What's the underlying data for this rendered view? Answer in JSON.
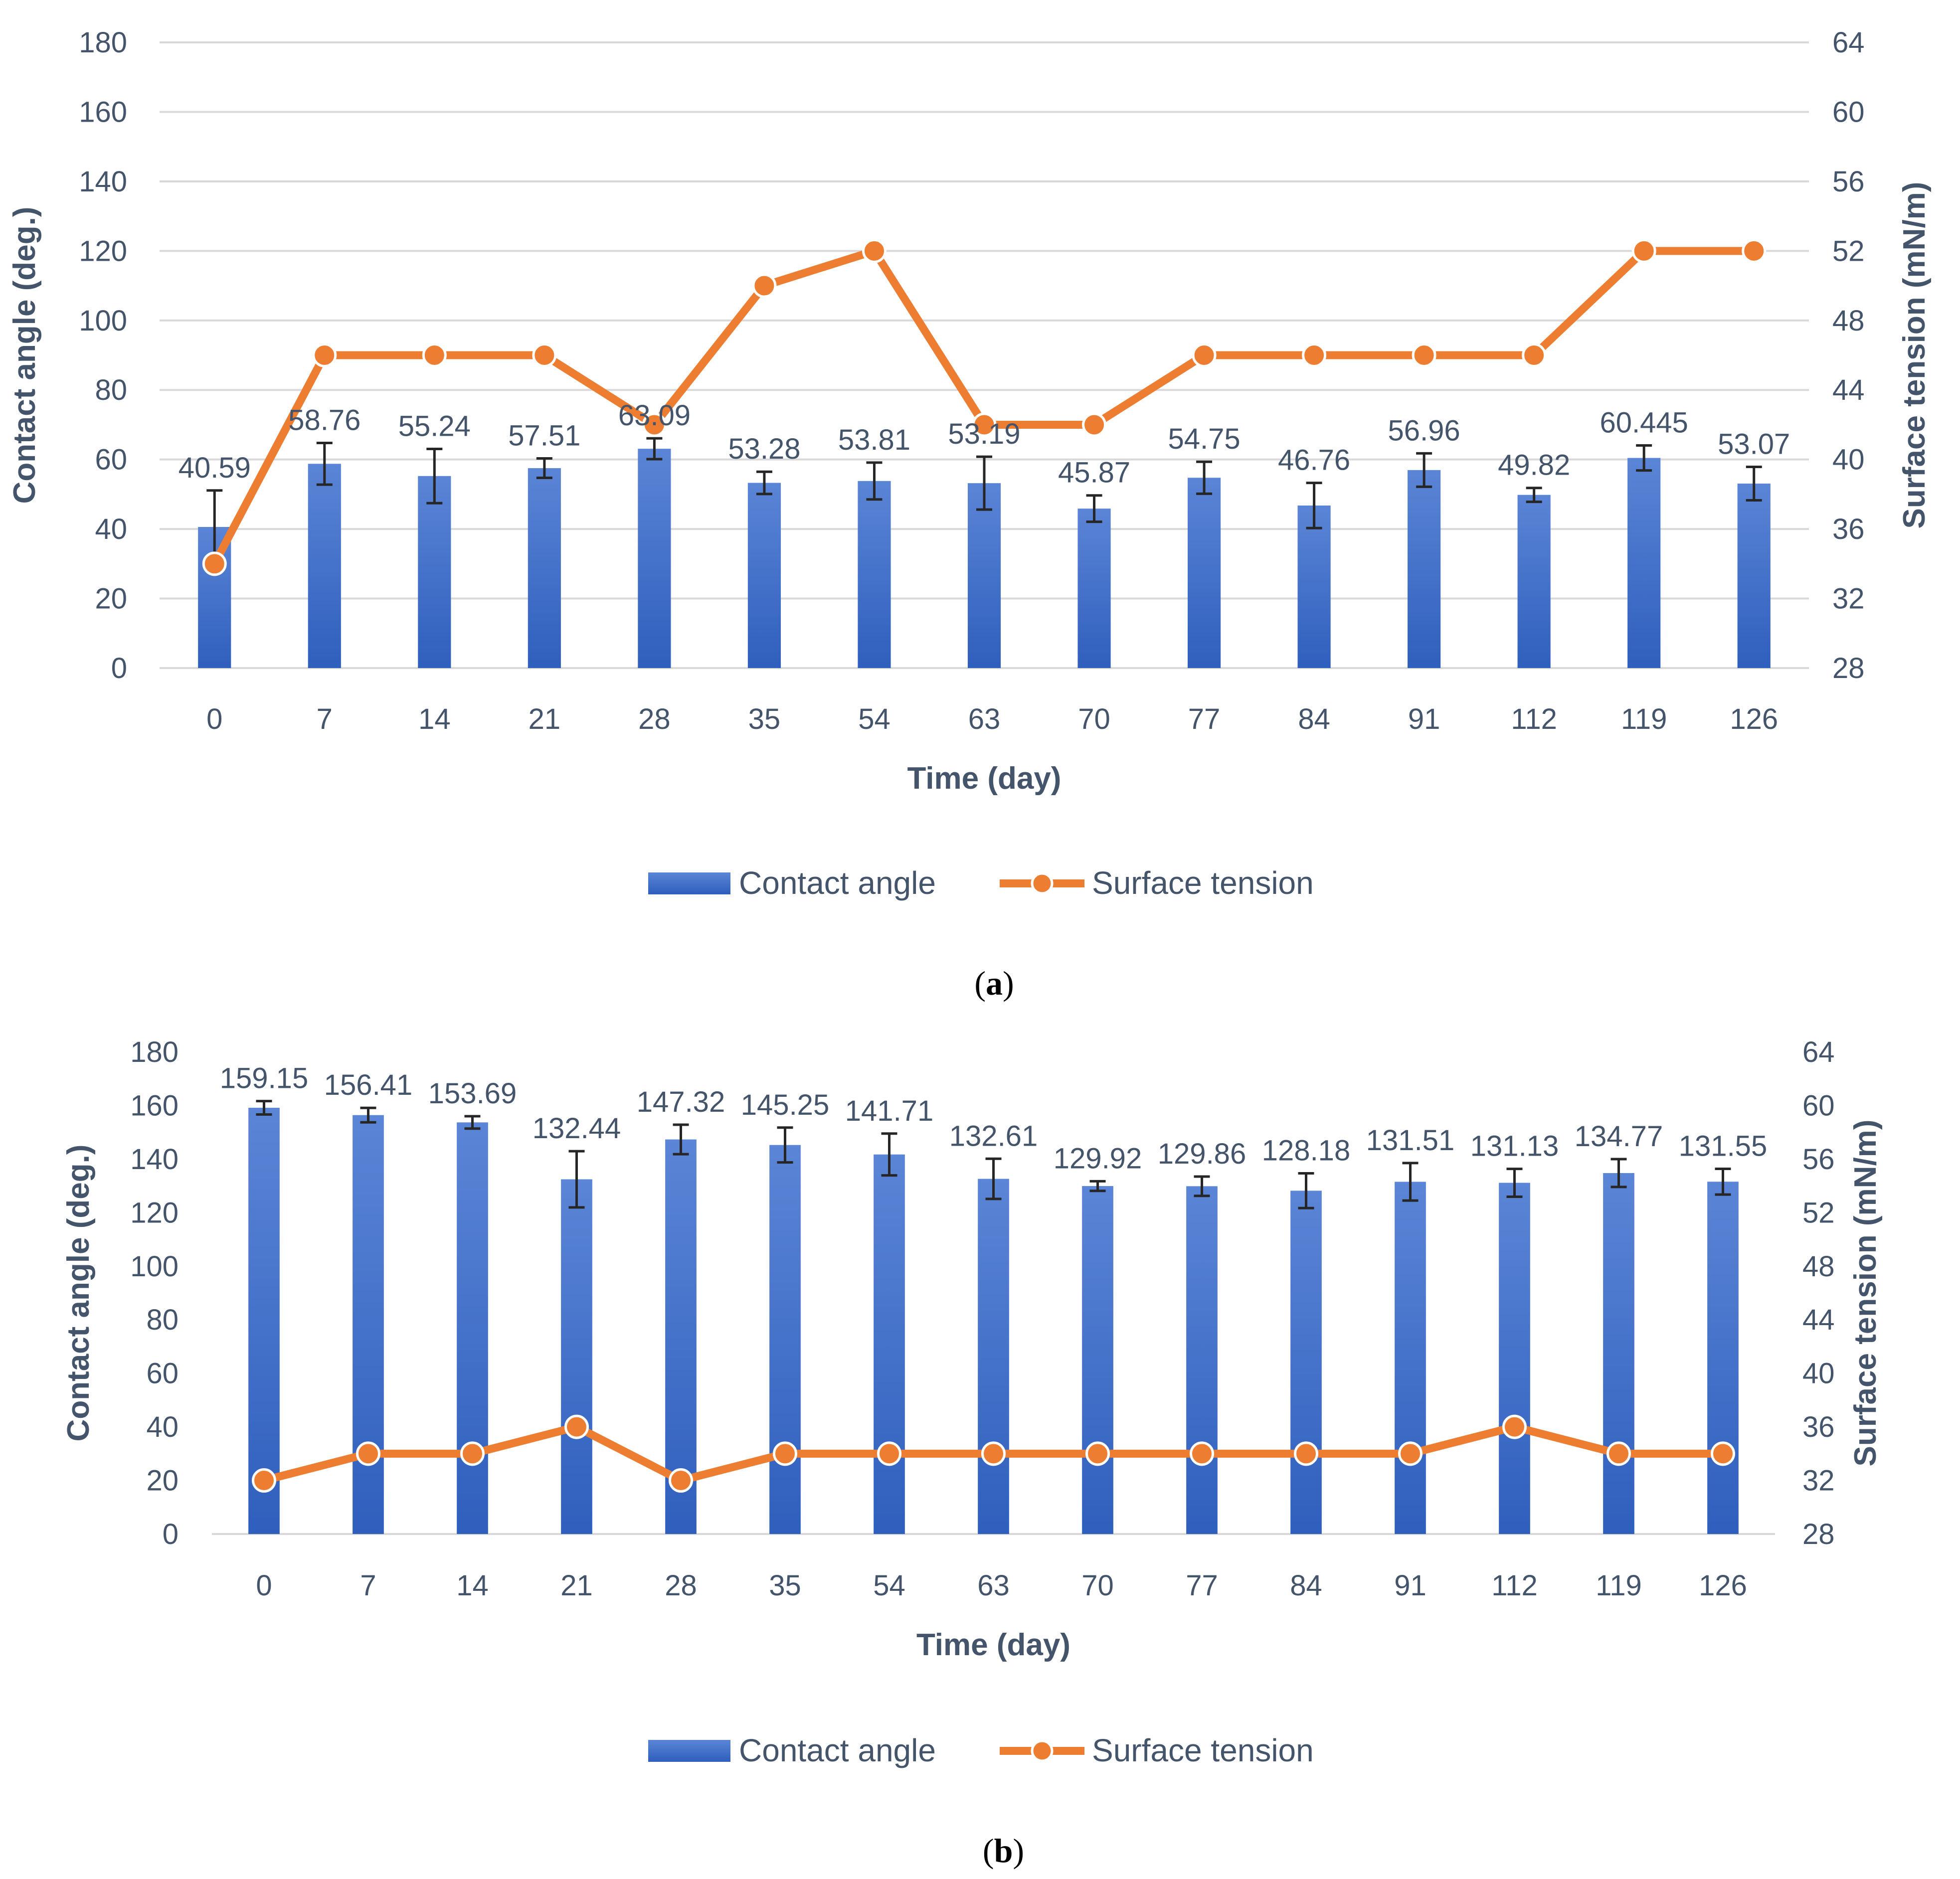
{
  "colors": {
    "bar_top": "#5b85d6",
    "bar_bottom": "#2f5fbd",
    "line": "#ed7d31",
    "grid": "#d9d9d9",
    "text": "#44546a",
    "errorbar": "#262626"
  },
  "chart_data": [
    {
      "type": "bar+line",
      "panel_label": "a",
      "xlabel": "Time (day)",
      "ylabel_left": "Contact angle (deg.)",
      "ylabel_right": "Surface tension (mN/m)",
      "ylim_left": [
        0,
        180
      ],
      "ylim_right": [
        28,
        64
      ],
      "yticks_left": [
        "0",
        "20",
        "40",
        "60",
        "80",
        "100",
        "120",
        "140",
        "160",
        "180"
      ],
      "yticks_right": [
        "28",
        "32",
        "36",
        "40",
        "44",
        "48",
        "52",
        "56",
        "60",
        "64"
      ],
      "grid": true,
      "legend": [
        "Contact angle",
        "Surface tension"
      ],
      "legend_position": "bottom",
      "categories": [
        "0",
        "7",
        "14",
        "21",
        "28",
        "35",
        "54",
        "63",
        "70",
        "77",
        "84",
        "91",
        "112",
        "119",
        "126"
      ],
      "series": [
        {
          "name": "Contact angle",
          "axis": "left",
          "kind": "bar",
          "values": [
            40.59,
            58.76,
            55.24,
            57.51,
            63.09,
            53.28,
            53.81,
            53.19,
            45.87,
            54.75,
            46.76,
            56.96,
            49.82,
            60.445,
            53.07
          ],
          "labels": [
            "40.59",
            "58.76",
            "55.24",
            "57.51",
            "63.09",
            "53.28",
            "53.81",
            "53.19",
            "45.87",
            "54.75",
            "46.76",
            "56.96",
            "49.82",
            "60.445",
            "53.07"
          ],
          "errors": [
            10.5,
            6.0,
            7.8,
            2.8,
            3.0,
            3.2,
            5.3,
            7.6,
            3.8,
            4.6,
            6.5,
            4.8,
            2.0,
            3.6,
            4.8
          ]
        },
        {
          "name": "Surface tension",
          "axis": "right",
          "kind": "line",
          "values": [
            34,
            46,
            46,
            46,
            42,
            50,
            52,
            42,
            42,
            46,
            46,
            46,
            46,
            52,
            52
          ]
        }
      ]
    },
    {
      "type": "bar+line",
      "panel_label": "b",
      "xlabel": "Time (day)",
      "ylabel_left": "Contact angle (deg.)",
      "ylabel_right": "Surface tension (mN/m)",
      "ylim_left": [
        0,
        180
      ],
      "ylim_right": [
        28,
        64
      ],
      "yticks_left": [
        "0",
        "20",
        "40",
        "60",
        "80",
        "100",
        "120",
        "140",
        "160",
        "180"
      ],
      "yticks_right": [
        "28",
        "32",
        "36",
        "40",
        "44",
        "48",
        "52",
        "56",
        "60",
        "64"
      ],
      "grid": false,
      "legend": [
        "Contact angle",
        "Surface tension"
      ],
      "legend_position": "bottom",
      "categories": [
        "0",
        "7",
        "14",
        "21",
        "28",
        "35",
        "54",
        "63",
        "70",
        "77",
        "84",
        "91",
        "112",
        "119",
        "126"
      ],
      "series": [
        {
          "name": "Contact angle",
          "axis": "left",
          "kind": "bar",
          "values": [
            159.15,
            156.41,
            153.69,
            132.44,
            147.32,
            145.25,
            141.71,
            132.61,
            129.92,
            129.86,
            128.18,
            131.51,
            131.13,
            134.77,
            131.55
          ],
          "labels": [
            "159.15",
            "156.41",
            "153.69",
            "132.44",
            "147.32",
            "145.25",
            "141.71",
            "132.61",
            "129.92",
            "129.86",
            "128.18",
            "131.51",
            "131.13",
            "134.77",
            "131.55"
          ],
          "errors": [
            2.5,
            2.7,
            2.3,
            10.5,
            5.5,
            6.5,
            7.8,
            7.5,
            1.8,
            3.6,
            6.5,
            7.0,
            5.2,
            5.2,
            4.8
          ]
        },
        {
          "name": "Surface tension",
          "axis": "right",
          "kind": "line",
          "values": [
            32,
            34,
            34,
            36,
            32,
            34,
            34,
            34,
            34,
            34,
            34,
            34,
            36,
            34,
            34
          ]
        }
      ]
    }
  ]
}
